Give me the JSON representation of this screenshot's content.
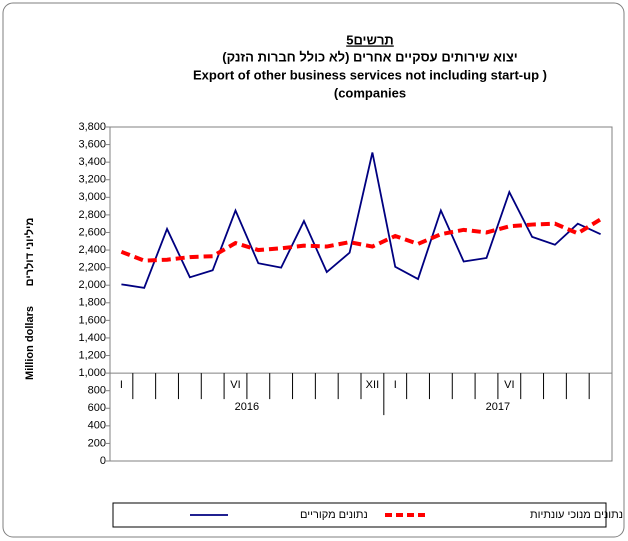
{
  "chart_data": {
    "type": "line",
    "title": "תרשים5",
    "subtitle": "יצוא שירותים עסקיים אחרים (לא כולל חברות הזנק)",
    "subtitle_en": [
      "Export of other business services not including start-up  )",
      "(companies"
    ],
    "y_label": "מיליוני דולרים",
    "y_label_en": "Million dollars",
    "categories": [
      "I",
      null,
      null,
      null,
      null,
      "VI",
      null,
      null,
      null,
      null,
      null,
      "XII",
      "I",
      null,
      null,
      null,
      null,
      "VI",
      null,
      null,
      null,
      null
    ],
    "years": [
      "2016",
      "2017"
    ],
    "series": [
      {
        "name": "נתונים מקוריים",
        "color": "#000080",
        "dashed": false,
        "values": [
          2010,
          1970,
          2640,
          2090,
          2170,
          2850,
          2250,
          2200,
          2730,
          2150,
          2370,
          3510,
          2210,
          2070,
          2850,
          2270,
          2310,
          3060,
          2550,
          2460,
          2700,
          2580
        ]
      },
      {
        "name": "נתונים מנוכי עונתיות",
        "color": "#ff0000",
        "dashed": true,
        "values": [
          2380,
          2280,
          2290,
          2320,
          2330,
          2480,
          2400,
          2420,
          2450,
          2440,
          2490,
          2440,
          2560,
          2470,
          2580,
          2630,
          2600,
          2670,
          2690,
          2700,
          2590,
          2750
        ]
      }
    ],
    "ylim": [
      0,
      3800
    ],
    "yticks": [
      0,
      200,
      400,
      600,
      800,
      {
        "value": 1000,
        "label": "1,000"
      },
      {
        "value": 1200,
        "label": "1,200"
      },
      {
        "value": 1400,
        "label": "1,400"
      },
      {
        "value": 1600,
        "label": "1,600"
      },
      {
        "value": 1800,
        "label": "1,800"
      },
      {
        "value": 2000,
        "label": "2,000"
      },
      {
        "value": 2200,
        "label": "2,200"
      },
      {
        "value": 2400,
        "label": "2,400"
      },
      {
        "value": 2600,
        "label": "2,600"
      },
      {
        "value": 2800,
        "label": "2,800"
      },
      {
        "value": 3000,
        "label": "3,000"
      },
      {
        "value": 3200,
        "label": "3,200"
      },
      {
        "value": 3400,
        "label": "3,400"
      },
      {
        "value": 3600,
        "label": "3,600"
      },
      {
        "value": 3800,
        "label": "3,800"
      }
    ],
    "x_axis_at": 1000,
    "grid": false
  }
}
